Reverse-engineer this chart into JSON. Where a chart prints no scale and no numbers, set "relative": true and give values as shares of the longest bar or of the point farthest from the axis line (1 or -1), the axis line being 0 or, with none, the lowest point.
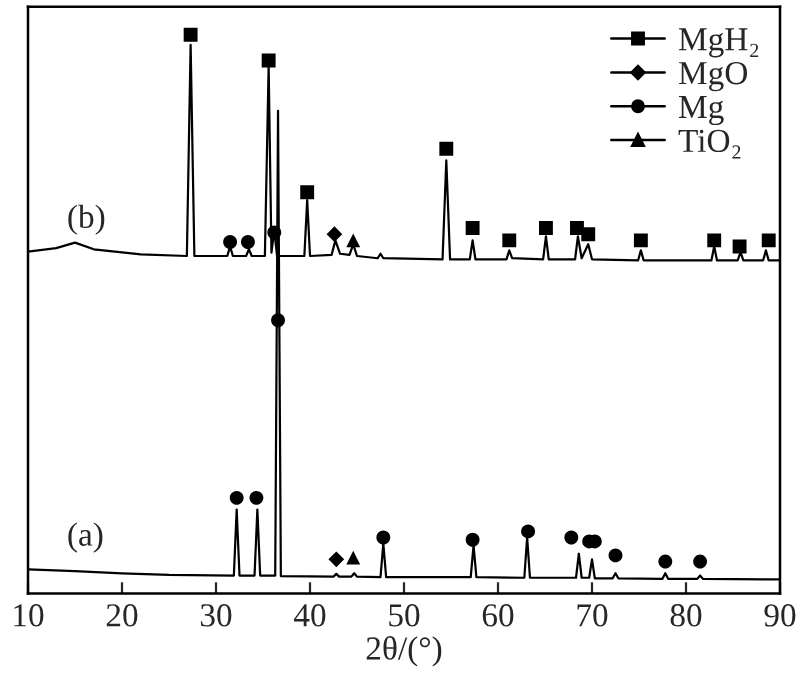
{
  "chart_data": {
    "type": "line",
    "relative": true,
    "xlabel": "2θ/(°)",
    "xlim": [
      10,
      90
    ],
    "xticks": [
      10,
      20,
      30,
      40,
      50,
      60,
      70,
      80,
      90
    ],
    "tick_labels": "x",
    "legend": "top right",
    "grid": false,
    "annotations": [
      "(a)",
      "(b)"
    ],
    "series": [
      {
        "color": "#000000",
        "x": [
          10,
          13,
          15,
          17,
          22,
          26.9,
          27.3,
          27.7,
          31.2,
          31.5,
          31.8,
          33.2,
          33.5,
          33.8,
          35.2,
          35.6,
          35.9,
          36.2,
          36.5,
          39.4,
          39.7,
          40.0,
          42.3,
          42.7,
          43.2,
          44.2,
          44.6,
          45.0,
          47.2,
          47.5,
          47.8,
          54.1,
          54.5,
          54.9,
          57.0,
          57.3,
          57.6,
          60.9,
          61.2,
          61.5,
          64.8,
          65.1,
          65.4,
          68.2,
          68.5,
          68.9,
          69.6,
          70.0,
          74.9,
          75.2,
          75.5,
          82.7,
          83.0,
          83.3,
          85.5,
          85.8,
          86.1,
          88.2,
          88.5,
          88.8,
          90
        ],
        "values": [
          0.612,
          0.618,
          0.628,
          0.616,
          0.607,
          0.604,
          0.982,
          0.604,
          0.604,
          0.621,
          0.604,
          0.604,
          0.616,
          0.604,
          0.604,
          0.943,
          0.61,
          0.65,
          0.604,
          0.604,
          0.704,
          0.604,
          0.606,
          0.632,
          0.608,
          0.606,
          0.625,
          0.604,
          0.6,
          0.608,
          0.6,
          0.598,
          0.775,
          0.598,
          0.598,
          0.632,
          0.598,
          0.598,
          0.614,
          0.6,
          0.598,
          0.639,
          0.598,
          0.598,
          0.639,
          0.6,
          0.625,
          0.598,
          0.596,
          0.614,
          0.596,
          0.596,
          0.621,
          0.596,
          0.596,
          0.611,
          0.596,
          0.596,
          0.614,
          0.596,
          0.596
        ]
      },
      {
        "color": "#000000",
        "x": [
          10,
          15,
          20,
          25,
          31.9,
          32.2,
          32.5,
          34.1,
          34.4,
          34.7,
          36.3,
          36.6,
          36.9,
          42.5,
          42.8,
          43.1,
          44.4,
          44.7,
          45.0,
          47.5,
          47.8,
          48.1,
          57.1,
          57.4,
          57.7,
          62.8,
          63.1,
          63.4,
          68.3,
          68.6,
          68.9,
          69.7,
          70.0,
          70.3,
          72.2,
          72.5,
          72.8,
          77.5,
          77.8,
          78.1,
          81.2,
          81.5,
          81.8,
          90
        ],
        "values": [
          0.043,
          0.04,
          0.036,
          0.033,
          0.032,
          0.15,
          0.032,
          0.032,
          0.15,
          0.032,
          0.032,
          0.864,
          0.031,
          0.03,
          0.035,
          0.03,
          0.03,
          0.036,
          0.03,
          0.029,
          0.089,
          0.029,
          0.029,
          0.086,
          0.029,
          0.028,
          0.1,
          0.028,
          0.028,
          0.071,
          0.028,
          0.028,
          0.061,
          0.027,
          0.027,
          0.036,
          0.027,
          0.026,
          0.036,
          0.026,
          0.026,
          0.032,
          0.026,
          0.025
        ]
      },
      {
        "type": "scatter",
        "name": "MgH₂",
        "marker": "square",
        "color": "#000000",
        "x": [
          27.3,
          35.6,
          39.7,
          54.5,
          57.3,
          61.2,
          65.1,
          68.4,
          69.6,
          75.2,
          83.0,
          85.7,
          88.8
        ],
        "values": [
          1.0,
          0.954,
          0.718,
          0.796,
          0.654,
          0.632,
          0.654,
          0.654,
          0.643,
          0.632,
          0.632,
          0.621,
          0.632
        ]
      },
      {
        "type": "scatter",
        "name": "MgO",
        "marker": "diamond",
        "color": "#000000",
        "x": [
          42.6,
          42.8
        ],
        "values": [
          0.643,
          0.061
        ]
      },
      {
        "type": "scatter",
        "name": "Mg",
        "marker": "circle",
        "color": "#000000",
        "x": [
          31.5,
          33.4,
          36.2,
          32.2,
          34.3,
          36.6,
          47.8,
          57.3,
          63.2,
          67.8,
          69.7,
          70.3,
          72.5,
          77.8,
          81.5
        ],
        "values": [
          0.629,
          0.629,
          0.646,
          0.171,
          0.171,
          0.489,
          0.1,
          0.096,
          0.111,
          0.1,
          0.093,
          0.093,
          0.068,
          0.057,
          0.057
        ]
      },
      {
        "type": "scatter",
        "name": "TiO₂",
        "marker": "triangle",
        "color": "#000000",
        "x": [
          44.6,
          44.6
        ],
        "values": [
          0.632,
          0.064
        ]
      }
    ]
  }
}
